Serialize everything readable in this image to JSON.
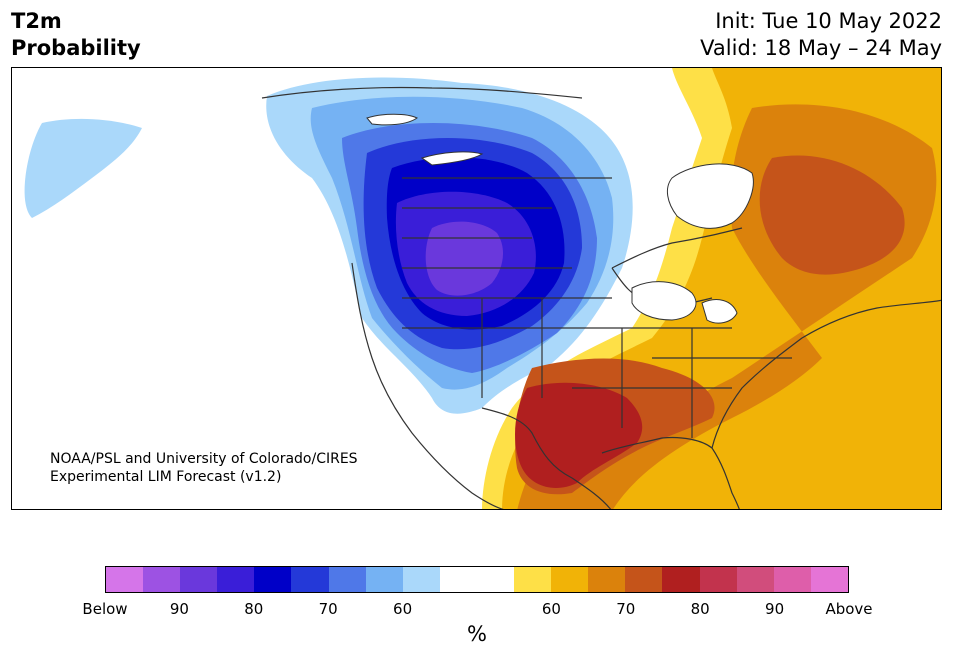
{
  "header": {
    "variable": "T2m",
    "product": "Probability",
    "init": "Init: Tue 10 May 2022",
    "valid": "Valid: 18 May – 24 May"
  },
  "map": {
    "credit_line1": "NOAA/PSL and University of Colorado/CIRES",
    "credit_line2": "Experimental LIM Forecast (v1.2)",
    "below_region_colors": [
      "#aad8fa",
      "#75b2f3",
      "#4f78e8",
      "#2439d8",
      "#0000c8",
      "#3a1ed8",
      "#6a38dc"
    ],
    "above_region_colors": [
      "#fee047",
      "#f1b307",
      "#db820c",
      "#c5541a",
      "#b01f1f"
    ],
    "coastline_color": "#333333"
  },
  "colorbar": {
    "unit": "%",
    "colors": [
      "#d575e9",
      "#9d52e3",
      "#6a38dc",
      "#3a1ed8",
      "#0000c8",
      "#2439d8",
      "#4f78e8",
      "#75b2f3",
      "#aad8fa",
      "#ffffff",
      "#ffffff",
      "#fee047",
      "#f1b307",
      "#db820c",
      "#c5541a",
      "#b01f1f",
      "#c2334d",
      "#d14d7c",
      "#de5eaa",
      "#e574d6"
    ],
    "tick_labels": [
      "Below",
      "90",
      "80",
      "70",
      "60",
      "60",
      "70",
      "80",
      "90",
      "Above"
    ]
  }
}
